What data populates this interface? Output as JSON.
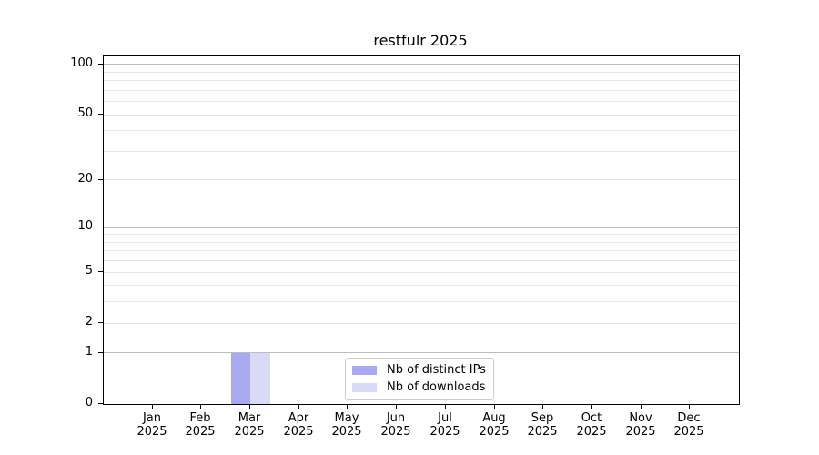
{
  "chart_data": {
    "type": "bar",
    "title": "restfulr 2025",
    "categories": [
      "Jan",
      "Feb",
      "Mar",
      "Apr",
      "May",
      "Jun",
      "Jul",
      "Aug",
      "Sep",
      "Oct",
      "Nov",
      "Dec"
    ],
    "category_year": "2025",
    "series": [
      {
        "name": "Nb of distinct IPs",
        "color": "#a9a9f2",
        "values": [
          0,
          0,
          1,
          0,
          0,
          0,
          0,
          0,
          0,
          0,
          0,
          0
        ]
      },
      {
        "name": "Nb of downloads",
        "color": "#d9d9f8",
        "values": [
          0,
          0,
          1,
          0,
          0,
          0,
          0,
          0,
          0,
          0,
          0,
          0
        ]
      }
    ],
    "y_scale": "log10(value+1)",
    "y_ticks": [
      0,
      1,
      2,
      5,
      10,
      20,
      50,
      100
    ],
    "y_major_gridlines": [
      1,
      10,
      100
    ],
    "y_minor_gridlines": [
      2,
      3,
      4,
      5,
      6,
      7,
      8,
      9,
      20,
      30,
      40,
      50,
      60,
      70,
      80,
      90
    ],
    "y_top_value": 113,
    "xlim_months": [
      -1,
      12
    ],
    "bar_width_months": 0.4,
    "grid": true,
    "legend_position": "lower center"
  },
  "colors": {
    "axis": "#000000",
    "major_grid": "#bdbdbd",
    "minor_grid": "#e8e8e8",
    "legend_border": "#cccccc",
    "text": "#000000",
    "background": "#ffffff"
  }
}
